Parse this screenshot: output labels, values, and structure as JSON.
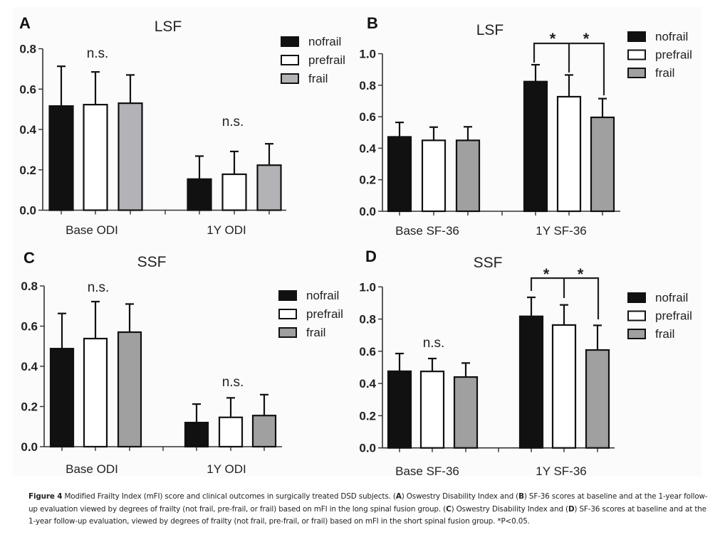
{
  "figure": {
    "caption": {
      "label": "Figure 4",
      "segments": [
        {
          "t": " Modified Frailty Index (mFI) score and clinical outcomes in surgically treated DSD subjects. (",
          "b": false
        },
        {
          "t": "A",
          "b": true
        },
        {
          "t": ") Oswestry Disability Index and (",
          "b": false
        },
        {
          "t": "B",
          "b": true
        },
        {
          "t": ") SF-36 scores at baseline and at the 1-year follow-up evaluation viewed by degrees of frailty (not frail, pre-frail, or frail) based on mFI in the long spinal fusion group. (",
          "b": false
        },
        {
          "t": "C",
          "b": true
        },
        {
          "t": ") Oswestry Disability Index and (",
          "b": false
        },
        {
          "t": "D",
          "b": true
        },
        {
          "t": ") SF-36 scores at baseline and at the 1-year follow-up evaluation, viewed by degrees of frailty (not frail, pre-frail, or frail) based on mFI in the short spinal fusion group. *P<0.05.",
          "b": false
        }
      ]
    }
  },
  "colors": {
    "nofrail": "#111111",
    "prefrail": "#ffffff",
    "frail": "#a0a0a0",
    "frail_panel_A": "#b3b3b7"
  },
  "chart_data": [
    {
      "panel": "A",
      "type": "bar",
      "title": "LSF",
      "categories": [
        "Base ODI",
        "1Y ODI"
      ],
      "series": [
        {
          "name": "nofrail",
          "values": [
            0.516,
            0.154
          ],
          "error_upper": [
            0.713,
            0.268
          ]
        },
        {
          "name": "prefrail",
          "values": [
            0.523,
            0.178
          ],
          "error_upper": [
            0.685,
            0.291
          ]
        },
        {
          "name": "frail",
          "values": [
            0.53,
            0.223
          ],
          "error_upper": [
            0.67,
            0.329
          ]
        }
      ],
      "ylim": [
        0,
        0.8
      ],
      "yticks": [
        "0.0",
        "0.2",
        "0.4",
        "0.6",
        "0.8"
      ],
      "legend": [
        "nofrail",
        "prefrail",
        "frail"
      ],
      "legend_position": "top-right",
      "annotations": [
        {
          "text": "n.s.",
          "category": "Base ODI"
        },
        {
          "text": "n.s.",
          "category": "1Y ODI"
        }
      ],
      "xlabel": "",
      "ylabel": "",
      "grid": false
    },
    {
      "panel": "B",
      "type": "bar",
      "title": "LSF",
      "categories": [
        "Base SF-36",
        "1Y SF-36"
      ],
      "series": [
        {
          "name": "nofrail",
          "values": [
            0.472,
            0.823
          ],
          "error_upper": [
            0.564,
            0.93
          ]
        },
        {
          "name": "prefrail",
          "values": [
            0.45,
            0.727
          ],
          "error_upper": [
            0.534,
            0.865
          ]
        },
        {
          "name": "frail",
          "values": [
            0.45,
            0.596
          ],
          "error_upper": [
            0.536,
            0.715
          ]
        }
      ],
      "ylim": [
        0,
        1.0
      ],
      "yticks": [
        "0.0",
        "0.2",
        "0.4",
        "0.6",
        "0.8",
        "1.0"
      ],
      "legend": [
        "nofrail",
        "prefrail",
        "frail"
      ],
      "legend_position": "top-right",
      "annotations": [
        {
          "text": "*",
          "category": "1Y SF-36",
          "between": [
            "nofrail",
            "prefrail"
          ]
        },
        {
          "text": "*",
          "category": "1Y SF-36",
          "between": [
            "prefrail",
            "frail"
          ]
        }
      ],
      "xlabel": "",
      "ylabel": "",
      "grid": false
    },
    {
      "panel": "C",
      "type": "bar",
      "title": "SSF",
      "categories": [
        "Base ODI",
        "1Y ODI"
      ],
      "series": [
        {
          "name": "nofrail",
          "values": [
            0.488,
            0.12
          ],
          "error_upper": [
            0.663,
            0.212
          ]
        },
        {
          "name": "prefrail",
          "values": [
            0.538,
            0.146
          ],
          "error_upper": [
            0.722,
            0.243
          ]
        },
        {
          "name": "frail",
          "values": [
            0.57,
            0.155
          ],
          "error_upper": [
            0.71,
            0.259
          ]
        }
      ],
      "ylim": [
        0,
        0.8
      ],
      "yticks": [
        "0.0",
        "0.2",
        "0.4",
        "0.6",
        "0.8"
      ],
      "legend": [
        "nofrail",
        "prefrail",
        "frail"
      ],
      "legend_position": "right",
      "annotations": [
        {
          "text": "n.s.",
          "category": "Base ODI"
        },
        {
          "text": "n.s.",
          "category": "1Y ODI"
        }
      ],
      "xlabel": "",
      "ylabel": "",
      "grid": false
    },
    {
      "panel": "D",
      "type": "bar",
      "title": "SSF",
      "categories": [
        "Base SF-36",
        "1Y SF-36"
      ],
      "series": [
        {
          "name": "nofrail",
          "values": [
            0.476,
            0.817
          ],
          "error_upper": [
            0.586,
            0.935
          ]
        },
        {
          "name": "prefrail",
          "values": [
            0.475,
            0.763
          ],
          "error_upper": [
            0.555,
            0.888
          ]
        },
        {
          "name": "frail",
          "values": [
            0.44,
            0.608
          ],
          "error_upper": [
            0.527,
            0.761
          ]
        }
      ],
      "ylim": [
        0,
        1.0
      ],
      "yticks": [
        "0.0",
        "0.2",
        "0.4",
        "0.6",
        "0.8",
        "1.0"
      ],
      "legend": [
        "nofrail",
        "prefrail",
        "frail"
      ],
      "legend_position": "right",
      "annotations": [
        {
          "text": "n.s.",
          "category": "Base SF-36"
        },
        {
          "text": "*",
          "category": "1Y SF-36",
          "between": [
            "nofrail",
            "prefrail"
          ]
        },
        {
          "text": "*",
          "category": "1Y SF-36",
          "between": [
            "prefrail",
            "frail"
          ]
        }
      ],
      "xlabel": "",
      "ylabel": "",
      "grid": false
    }
  ]
}
